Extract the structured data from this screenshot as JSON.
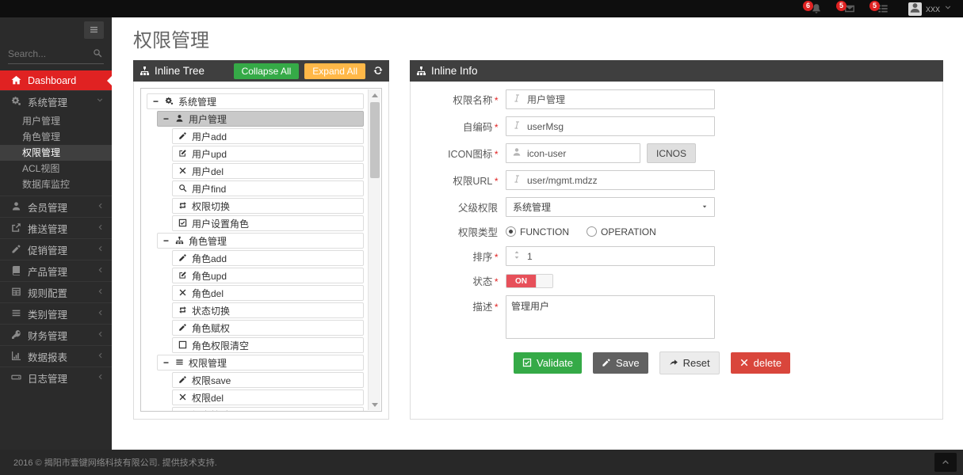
{
  "topbar": {
    "user_name": "xxx",
    "notifications": [
      {
        "icon": "bell",
        "badge": "6"
      },
      {
        "icon": "envelope",
        "badge": "5"
      },
      {
        "icon": "tasks",
        "badge": "5"
      }
    ]
  },
  "sidebar": {
    "search_placeholder": "Search...",
    "items": [
      {
        "id": "dashboard",
        "icon": "home",
        "label": "Dashboard",
        "style": "dashboard"
      },
      {
        "id": "system",
        "icon": "gears",
        "label": "系统管理",
        "caret": "down",
        "children": [
          {
            "id": "user-mgmt",
            "label": "用户管理"
          },
          {
            "id": "role-mgmt",
            "label": "角色管理"
          },
          {
            "id": "perm-mgmt",
            "label": "权限管理",
            "active": true
          },
          {
            "id": "acl-view",
            "label": "ACL视图"
          },
          {
            "id": "db-monitor",
            "label": "数据库监控"
          }
        ]
      },
      {
        "id": "member",
        "icon": "user",
        "label": "会员管理",
        "caret": "left"
      },
      {
        "id": "push",
        "icon": "share",
        "label": "推送管理",
        "caret": "left"
      },
      {
        "id": "promo",
        "icon": "pencil",
        "label": "促销管理",
        "caret": "left"
      },
      {
        "id": "product",
        "icon": "book",
        "label": "产品管理",
        "caret": "left"
      },
      {
        "id": "rules",
        "icon": "table",
        "label": "规则配置",
        "caret": "left"
      },
      {
        "id": "category",
        "icon": "bars",
        "label": "类别管理",
        "caret": "left"
      },
      {
        "id": "finance",
        "icon": "key",
        "label": "财务管理",
        "caret": "left"
      },
      {
        "id": "report",
        "icon": "chart",
        "label": "数据报表",
        "caret": "left"
      },
      {
        "id": "log",
        "icon": "hdd",
        "label": "日志管理",
        "caret": "left"
      }
    ]
  },
  "page": {
    "title": "权限管理"
  },
  "tree_panel": {
    "title": "Inline Tree",
    "collapse_btn": "Collapse All",
    "expand_btn": "Expand All",
    "nodes": [
      {
        "level": 0,
        "toggle": "−",
        "icon": "gears",
        "label": "系统管理"
      },
      {
        "level": 1,
        "toggle": "−",
        "icon": "user",
        "label": "用户管理",
        "selected": true
      },
      {
        "level": 2,
        "icon": "pencil",
        "label": "用户add"
      },
      {
        "level": 2,
        "icon": "edit",
        "label": "用户upd"
      },
      {
        "level": 2,
        "icon": "x",
        "label": "用户del"
      },
      {
        "level": 2,
        "icon": "search",
        "label": "用户find"
      },
      {
        "level": 2,
        "icon": "retweet",
        "label": "权限切换"
      },
      {
        "level": 2,
        "icon": "check-square",
        "label": "用户设置角色"
      },
      {
        "level": 1,
        "toggle": "−",
        "icon": "sitemap",
        "label": "角色管理"
      },
      {
        "level": 2,
        "icon": "pencil",
        "label": "角色add"
      },
      {
        "level": 2,
        "icon": "edit",
        "label": "角色upd"
      },
      {
        "level": 2,
        "icon": "x",
        "label": "角色del"
      },
      {
        "level": 2,
        "icon": "retweet",
        "label": "状态切换"
      },
      {
        "level": 2,
        "icon": "pencil",
        "label": "角色赋权"
      },
      {
        "level": 2,
        "icon": "square",
        "label": "角色权限清空"
      },
      {
        "level": 1,
        "toggle": "−",
        "icon": "bars",
        "label": "权限管理"
      },
      {
        "level": 2,
        "icon": "pencil",
        "label": "权限save"
      },
      {
        "level": 2,
        "icon": "x",
        "label": "权限del"
      },
      {
        "level": 2,
        "icon": "edit",
        "label": "提交检验"
      }
    ]
  },
  "form_panel": {
    "title": "Inline Info",
    "fields": {
      "name": {
        "label": "权限名称",
        "required": true,
        "value": "用户管理"
      },
      "code": {
        "label": "自编码",
        "required": true,
        "value": "userMsg"
      },
      "icon": {
        "label": "ICON图标",
        "required": true,
        "value": "icon-user",
        "button": "ICNOS"
      },
      "url": {
        "label": "权限URL",
        "required": true,
        "value": "user/mgmt.mdzz"
      },
      "parent": {
        "label": "父级权限",
        "value": "系统管理"
      },
      "type": {
        "label": "权限类型",
        "options": [
          "FUNCTION",
          "OPERATION"
        ],
        "selected": "FUNCTION"
      },
      "sort": {
        "label": "排序",
        "required": true,
        "value": "1"
      },
      "status": {
        "label": "状态",
        "required": true,
        "value": "ON"
      },
      "desc": {
        "label": "描述",
        "required": true,
        "value": "管理用户"
      }
    },
    "buttons": {
      "validate": "Validate",
      "save": "Save",
      "reset": "Reset",
      "delete": "delete"
    }
  },
  "footer": {
    "copyright": "2016 © 揭阳市壹键网络科技有限公司. 提供技术支持."
  },
  "colors": {
    "accent_red": "#e02222",
    "green": "#35aa47",
    "orange": "#ffb848",
    "delete_red": "#d9463c",
    "toggle_red": "#e7505a",
    "panel_header": "#3f3f3f"
  }
}
